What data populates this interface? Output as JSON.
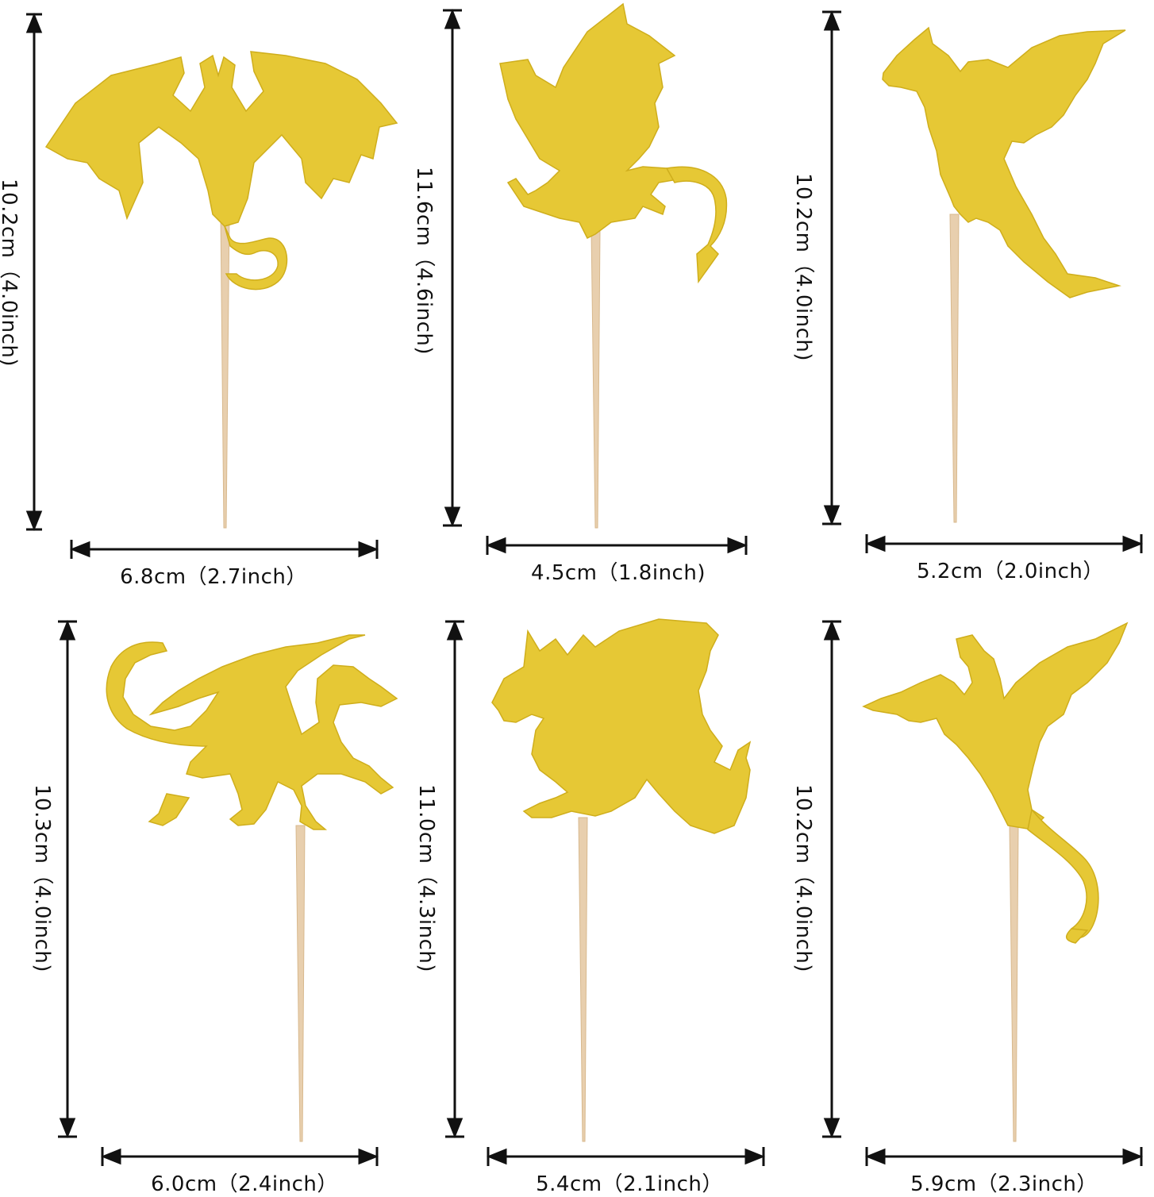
{
  "colors": {
    "gold": "#e6c835",
    "gold_dark": "#cfae1c",
    "stick": "#e8cfae",
    "line": "#111111"
  },
  "toppers": [
    {
      "shape": "dragon-spread-wings",
      "height_label": "10.2cm（4.0inch)",
      "width_label": "6.8cm（2.7inch）"
    },
    {
      "shape": "dragon-flying-left",
      "height_label": "11.6cm（4.6inch)",
      "width_label": "4.5cm（1.8inch)"
    },
    {
      "shape": "dragon-rearing-left",
      "height_label": "10.2cm（4.0inch)",
      "width_label": "5.2cm（2.0inch）"
    },
    {
      "shape": "dragon-walking-right",
      "height_label": "10.3cm（4.0inch)",
      "width_label": "6.0cm（2.4inch）"
    },
    {
      "shape": "dragon-roaring-left",
      "height_label": "11.0cm（4.3inch)",
      "width_label": "5.4cm（2.1inch）"
    },
    {
      "shape": "dragon-diving",
      "height_label": "10.2cm（4.0inch)",
      "width_label": "5.9cm（2.3inch）"
    }
  ]
}
